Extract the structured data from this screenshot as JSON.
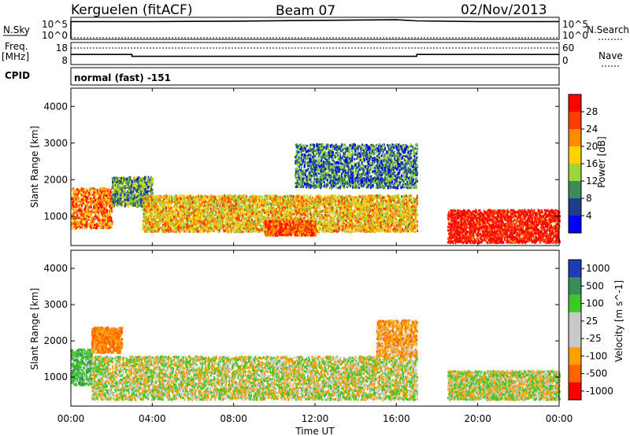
{
  "header": {
    "station": "Kerguelen (fitACF)",
    "beam": "Beam 07",
    "date": "02/Nov/2013"
  },
  "sky_panel": {
    "left_label": "N.Sky",
    "left_ticks": [
      "10^5",
      "10^0"
    ],
    "right_label": "N.Search",
    "right_ticks": [
      "10^5",
      "10^0"
    ]
  },
  "freq_panel": {
    "left_label_line1": "Freq.",
    "left_label_line2": "[MHz]",
    "left_ticks": [
      "18",
      "8"
    ],
    "right_label": "Nave",
    "right_ticks": [
      "60",
      "0"
    ]
  },
  "cpid": {
    "label": "CPID",
    "value": "normal (fast) -151"
  },
  "power_panel": {
    "ylabel": "Slant Range [km]",
    "yticks": [
      "4000",
      "3000",
      "2000",
      "1000"
    ],
    "colorbar_label": "Power [dB]",
    "colorbar_ticks": [
      "28",
      "24",
      "20",
      "16",
      "12",
      "8",
      "4"
    ],
    "colorbar_colors": [
      "#ff0000",
      "#ff3c00",
      "#ff8c00",
      "#ffd200",
      "#9cd63c",
      "#3c8c5a",
      "#1e3c8c",
      "#0000ff"
    ]
  },
  "velocity_panel": {
    "ylabel": "Slant Range [km]",
    "yticks": [
      "4000",
      "3000",
      "2000",
      "1000"
    ],
    "colorbar_label": "Velocity [m s^-1]",
    "colorbar_ticks": [
      "1000",
      "500",
      "100",
      "25",
      "-25",
      "-100",
      "-500",
      "-1000"
    ],
    "colorbar_colors": [
      "#1e3cb4",
      "#3c8c5a",
      "#3cc828",
      "#c8c8c8",
      "#c8c8c8",
      "#ffa000",
      "#ff6400",
      "#ff0000"
    ]
  },
  "xaxis": {
    "label": "Time UT",
    "ticks": [
      "00:00",
      "04:00",
      "08:00",
      "12:00",
      "16:00",
      "20:00",
      "00:00"
    ]
  },
  "chart_data": [
    {
      "type": "line",
      "title": "Kerguelen (fitACF) Beam 07 02/Nov/2013",
      "series": [
        {
          "name": "N.Sky",
          "x": [
            "00:00",
            "04:00",
            "08:00",
            "12:00",
            "16:00",
            "17:00",
            "20:00",
            "24:00"
          ],
          "values": [
            20000,
            20000,
            25000,
            40000,
            60000,
            30000,
            20000,
            20000
          ]
        },
        {
          "name": "N.Search",
          "x": [
            "00:00",
            "24:00"
          ],
          "values": [
            1,
            1
          ]
        }
      ],
      "ylabel": "N.Sky",
      "yscale": "log",
      "ylim": [
        1,
        100000
      ]
    },
    {
      "type": "line",
      "series": [
        {
          "name": "Freq.",
          "x": [
            "00:00",
            "03:00",
            "03:00",
            "17:00",
            "17:00",
            "24:00"
          ],
          "values": [
            12.5,
            12.5,
            11.5,
            11.5,
            12.5,
            12.5
          ]
        },
        {
          "name": "Nave",
          "x": [
            "00:00",
            "24:00"
          ],
          "values": [
            42,
            42
          ]
        }
      ],
      "ylabel": "Freq. [MHz]",
      "ylim": [
        8,
        18
      ],
      "y2label": "Nave",
      "y2lim": [
        0,
        60
      ]
    },
    {
      "type": "heatmap",
      "variable": "Power [dB]",
      "xlabel": "Time UT",
      "ylabel": "Slant Range [km]",
      "xlim": [
        "00:00",
        "24:00"
      ],
      "ylim": [
        200,
        4500
      ],
      "colorscale": [
        0,
        30
      ],
      "regions": [
        {
          "t": [
            0.0,
            2.0
          ],
          "r": [
            700,
            1800
          ],
          "level": 22
        },
        {
          "t": [
            2.0,
            4.0
          ],
          "r": [
            1300,
            2100
          ],
          "level": 10
        },
        {
          "t": [
            3.5,
            17.0
          ],
          "r": [
            600,
            1600
          ],
          "level": 18
        },
        {
          "t": [
            9.5,
            12.0
          ],
          "r": [
            500,
            900
          ],
          "level": 24
        },
        {
          "t": [
            11.0,
            17.0
          ],
          "r": [
            1800,
            3000
          ],
          "level": 8
        },
        {
          "t": [
            18.5,
            24.0
          ],
          "r": [
            300,
            1200
          ],
          "level": 28
        }
      ]
    },
    {
      "type": "heatmap",
      "variable": "Velocity [m s^-1]",
      "xlabel": "Time UT",
      "ylabel": "Slant Range [km]",
      "xlim": [
        "00:00",
        "24:00"
      ],
      "ylim": [
        200,
        4500
      ],
      "colorscale": [
        -1000,
        1000
      ],
      "regions": [
        {
          "t": [
            0.0,
            1.0
          ],
          "r": [
            800,
            1800
          ],
          "level": 200
        },
        {
          "t": [
            1.0,
            2.5
          ],
          "r": [
            1700,
            2400
          ],
          "level": -300
        },
        {
          "t": [
            1.0,
            17.0
          ],
          "r": [
            400,
            1600
          ],
          "level": 0
        },
        {
          "t": [
            15.0,
            17.0
          ],
          "r": [
            1600,
            2600
          ],
          "level": -200
        },
        {
          "t": [
            18.5,
            24.0
          ],
          "r": [
            400,
            1200
          ],
          "level": 0
        }
      ]
    }
  ]
}
